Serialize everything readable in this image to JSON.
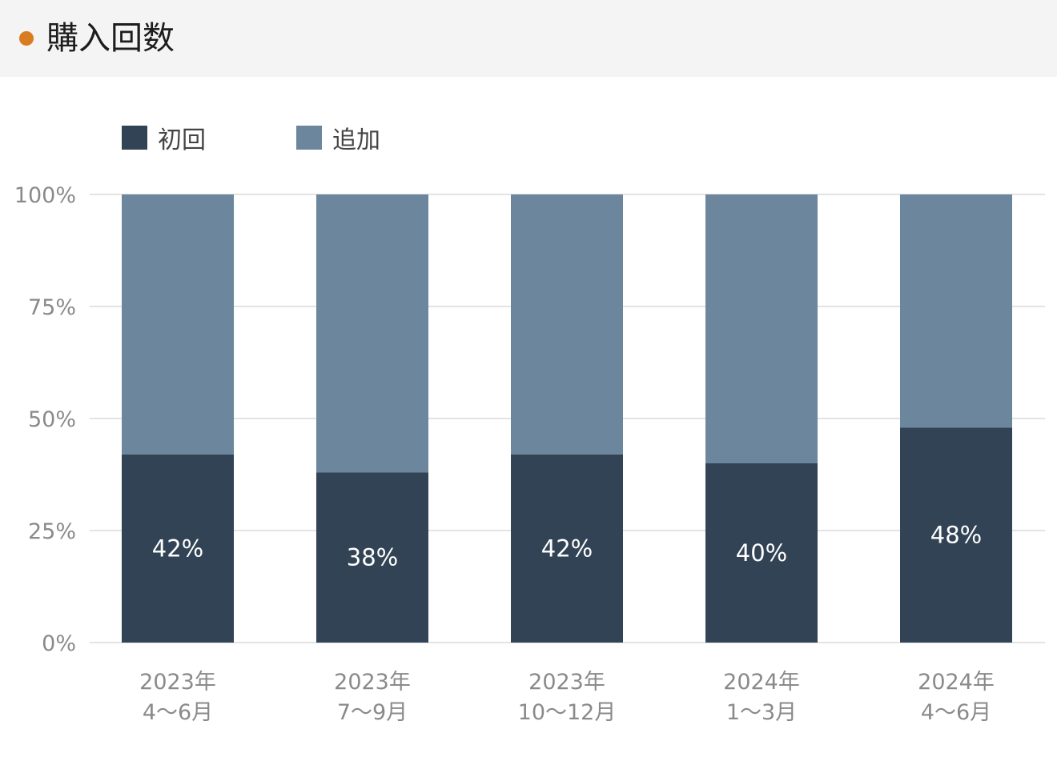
{
  "header": {
    "title": "購入回数",
    "accent_color": "#d97b1f"
  },
  "chart_data": {
    "type": "bar",
    "stacked": true,
    "percent": true,
    "title": "購入回数",
    "categories": [
      [
        "2023年",
        "4〜6月"
      ],
      [
        "2023年",
        "7〜9月"
      ],
      [
        "2023年",
        "10〜12月"
      ],
      [
        "2024年",
        "1〜3月"
      ],
      [
        "2024年",
        "4〜6月"
      ]
    ],
    "series": [
      {
        "name": "初回",
        "color": "#324355",
        "values": [
          42,
          38,
          42,
          40,
          48
        ],
        "labels": [
          "42%",
          "38%",
          "42%",
          "40%",
          "48%"
        ]
      },
      {
        "name": "追加",
        "color": "#6b869d",
        "values": [
          58,
          62,
          58,
          60,
          52
        ]
      }
    ],
    "yticks": [
      "0%",
      "25%",
      "50%",
      "75%",
      "100%"
    ],
    "ylim": [
      0,
      100
    ],
    "grid": true,
    "legend": "top-left"
  }
}
